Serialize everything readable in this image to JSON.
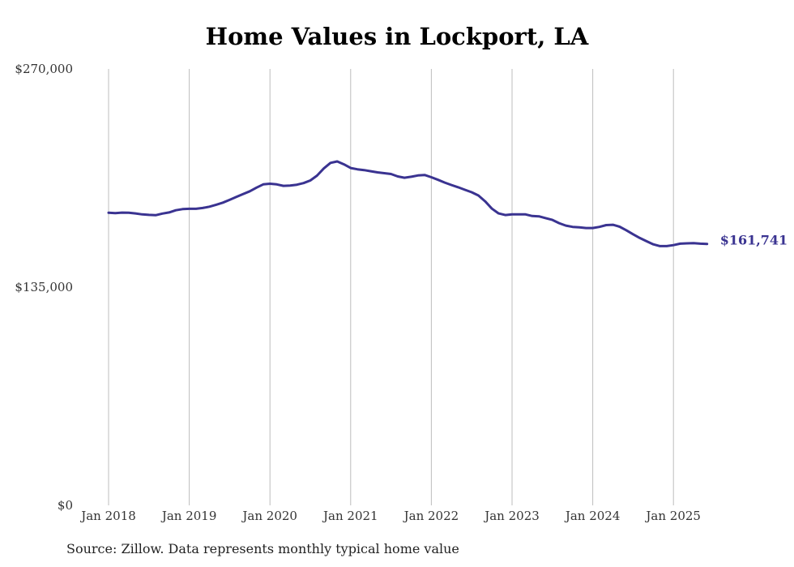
{
  "chart_data": {
    "type": "line",
    "title": "Home Values in Lockport, LA",
    "xlabel": "",
    "ylabel": "",
    "ylim": [
      0,
      270000
    ],
    "y_ticks": [
      "$0",
      "$135,000",
      "$270,000"
    ],
    "y_tick_values": [
      0,
      135000,
      270000
    ],
    "x_ticks": [
      "Jan 2018",
      "Jan 2019",
      "Jan 2020",
      "Jan 2021",
      "Jan 2022",
      "Jan 2023",
      "Jan 2024",
      "Jan 2025"
    ],
    "grid": "vertical",
    "line_color": "#3a3391",
    "end_label": "$161,741",
    "series": [
      {
        "x": [
          "2018-01",
          "2018-02",
          "2018-03",
          "2018-04",
          "2018-05",
          "2018-06",
          "2018-07",
          "2018-08",
          "2018-09",
          "2018-10",
          "2018-11",
          "2018-12",
          "2019-01",
          "2019-02",
          "2019-03",
          "2019-04",
          "2019-05",
          "2019-06",
          "2019-07",
          "2019-08",
          "2019-09",
          "2019-10",
          "2019-11",
          "2019-12",
          "2020-01",
          "2020-02",
          "2020-03",
          "2020-04",
          "2020-05",
          "2020-06",
          "2020-07",
          "2020-08",
          "2020-09",
          "2020-10",
          "2020-11",
          "2020-12",
          "2021-01",
          "2021-02",
          "2021-03",
          "2021-04",
          "2021-05",
          "2021-06",
          "2021-07",
          "2021-08",
          "2021-09",
          "2021-10",
          "2021-11",
          "2021-12",
          "2022-01",
          "2022-02",
          "2022-03",
          "2022-04",
          "2022-05",
          "2022-06",
          "2022-07",
          "2022-08",
          "2022-09",
          "2022-10",
          "2022-11",
          "2022-12",
          "2023-01",
          "2023-02",
          "2023-03",
          "2023-04",
          "2023-05",
          "2023-06",
          "2023-07",
          "2023-08",
          "2023-09",
          "2023-10",
          "2023-11",
          "2023-12",
          "2024-01",
          "2024-02",
          "2024-03",
          "2024-04",
          "2024-05",
          "2024-06",
          "2024-07",
          "2024-08",
          "2024-09",
          "2024-10",
          "2024-11",
          "2024-12",
          "2025-01",
          "2025-02",
          "2025-03",
          "2025-04",
          "2025-05",
          "2025-06"
        ],
        "values": [
          181000,
          180800,
          181100,
          181000,
          180600,
          180000,
          179700,
          179500,
          180500,
          181200,
          182600,
          183300,
          183500,
          183500,
          184000,
          184800,
          186000,
          187300,
          189000,
          190800,
          192600,
          194300,
          196600,
          198600,
          199000,
          198600,
          197700,
          197900,
          198400,
          199400,
          201000,
          204000,
          208400,
          211900,
          212800,
          211000,
          208700,
          207900,
          207400,
          206700,
          206000,
          205500,
          205000,
          203500,
          202700,
          203300,
          204100,
          204400,
          203000,
          201400,
          199700,
          198200,
          196800,
          195200,
          193700,
          191700,
          188100,
          183600,
          180600,
          179600,
          180000,
          180000,
          180000,
          179000,
          178800,
          177700,
          176600,
          174600,
          173100,
          172300,
          172000,
          171600,
          171600,
          172300,
          173400,
          173600,
          172400,
          170200,
          167700,
          165400,
          163400,
          161500,
          160400,
          160400,
          161000,
          161900,
          162100,
          162200,
          161900,
          161741
        ]
      }
    ]
  },
  "source_note": "Source: Zillow. Data represents monthly typical home value"
}
